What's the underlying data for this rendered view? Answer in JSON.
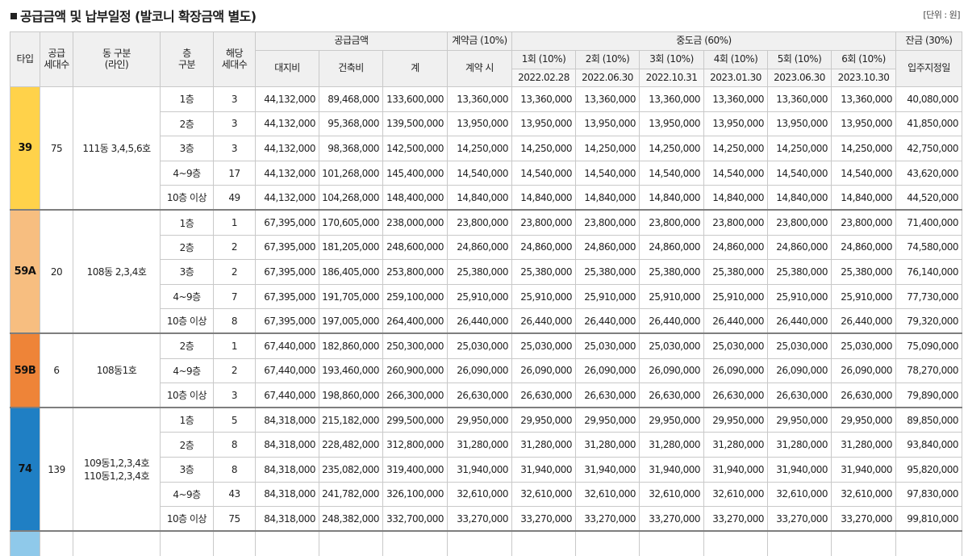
{
  "title": "공급금액 및 납부일정 (발코니 확장금액 별도)",
  "unit": "[단위 : 원]",
  "header": {
    "type": "타입",
    "supply_households": "공급\n세대수",
    "dong": "동 구분\n(라인)",
    "floor": "층\n구분",
    "households": "해당\n세대수",
    "supply_amount": "공급금액",
    "land": "대지비",
    "building": "건축비",
    "total": "계",
    "deposit": "계약금 (10%)",
    "deposit_time": "계약 시",
    "middle": "중도금 (60%)",
    "balance": "잔금 (30%)",
    "balance_date": "입주지정일",
    "installments": [
      {
        "label": "1회 (10%)",
        "date": "2022.02.28"
      },
      {
        "label": "2회 (10%)",
        "date": "2022.06.30"
      },
      {
        "label": "3회 (10%)",
        "date": "2022.10.31"
      },
      {
        "label": "4회 (10%)",
        "date": "2023.01.30"
      },
      {
        "label": "5회 (10%)",
        "date": "2023.06.30"
      },
      {
        "label": "6회 (10%)",
        "date": "2023.10.30"
      }
    ]
  },
  "groups": [
    {
      "type": "39",
      "color": "#ffd24a",
      "supply": "75",
      "dong": "111동 3,4,5,6호",
      "rows": [
        {
          "floor": "1층",
          "count": "3",
          "land": "44,132,000",
          "building": "89,468,000",
          "total": "133,600,000",
          "deposit": "13,360,000",
          "middle": "13,360,000",
          "balance": "40,080,000"
        },
        {
          "floor": "2층",
          "count": "3",
          "land": "44,132,000",
          "building": "95,368,000",
          "total": "139,500,000",
          "deposit": "13,950,000",
          "middle": "13,950,000",
          "balance": "41,850,000"
        },
        {
          "floor": "3층",
          "count": "3",
          "land": "44,132,000",
          "building": "98,368,000",
          "total": "142,500,000",
          "deposit": "14,250,000",
          "middle": "14,250,000",
          "balance": "42,750,000"
        },
        {
          "floor": "4~9층",
          "count": "17",
          "land": "44,132,000",
          "building": "101,268,000",
          "total": "145,400,000",
          "deposit": "14,540,000",
          "middle": "14,540,000",
          "balance": "43,620,000"
        },
        {
          "floor": "10층 이상",
          "count": "49",
          "land": "44,132,000",
          "building": "104,268,000",
          "total": "148,400,000",
          "deposit": "14,840,000",
          "middle": "14,840,000",
          "balance": "44,520,000"
        }
      ]
    },
    {
      "type": "59A",
      "color": "#f7be80",
      "supply": "20",
      "dong": "108동 2,3,4호",
      "rows": [
        {
          "floor": "1층",
          "count": "1",
          "land": "67,395,000",
          "building": "170,605,000",
          "total": "238,000,000",
          "deposit": "23,800,000",
          "middle": "23,800,000",
          "balance": "71,400,000"
        },
        {
          "floor": "2층",
          "count": "2",
          "land": "67,395,000",
          "building": "181,205,000",
          "total": "248,600,000",
          "deposit": "24,860,000",
          "middle": "24,860,000",
          "balance": "74,580,000"
        },
        {
          "floor": "3층",
          "count": "2",
          "land": "67,395,000",
          "building": "186,405,000",
          "total": "253,800,000",
          "deposit": "25,380,000",
          "middle": "25,380,000",
          "balance": "76,140,000"
        },
        {
          "floor": "4~9층",
          "count": "7",
          "land": "67,395,000",
          "building": "191,705,000",
          "total": "259,100,000",
          "deposit": "25,910,000",
          "middle": "25,910,000",
          "balance": "77,730,000"
        },
        {
          "floor": "10층 이상",
          "count": "8",
          "land": "67,395,000",
          "building": "197,005,000",
          "total": "264,400,000",
          "deposit": "26,440,000",
          "middle": "26,440,000",
          "balance": "79,320,000"
        }
      ]
    },
    {
      "type": "59B",
      "color": "#ee8438",
      "supply": "6",
      "dong": "108동1호",
      "rows": [
        {
          "floor": "2층",
          "count": "1",
          "land": "67,440,000",
          "building": "182,860,000",
          "total": "250,300,000",
          "deposit": "25,030,000",
          "middle": "25,030,000",
          "balance": "75,090,000"
        },
        {
          "floor": "4~9층",
          "count": "2",
          "land": "67,440,000",
          "building": "193,460,000",
          "total": "260,900,000",
          "deposit": "26,090,000",
          "middle": "26,090,000",
          "balance": "78,270,000"
        },
        {
          "floor": "10층 이상",
          "count": "3",
          "land": "67,440,000",
          "building": "198,860,000",
          "total": "266,300,000",
          "deposit": "26,630,000",
          "middle": "26,630,000",
          "balance": "79,890,000"
        }
      ]
    },
    {
      "type": "74",
      "color": "#1f7fc4",
      "supply": "139",
      "dong": "109동1,2,3,4호\n110동1,2,3,4호",
      "rows": [
        {
          "floor": "1층",
          "count": "5",
          "land": "84,318,000",
          "building": "215,182,000",
          "total": "299,500,000",
          "deposit": "29,950,000",
          "middle": "29,950,000",
          "balance": "89,850,000"
        },
        {
          "floor": "2층",
          "count": "8",
          "land": "84,318,000",
          "building": "228,482,000",
          "total": "312,800,000",
          "deposit": "31,280,000",
          "middle": "31,280,000",
          "balance": "93,840,000"
        },
        {
          "floor": "3층",
          "count": "8",
          "land": "84,318,000",
          "building": "235,082,000",
          "total": "319,400,000",
          "deposit": "31,940,000",
          "middle": "31,940,000",
          "balance": "95,820,000"
        },
        {
          "floor": "4~9층",
          "count": "43",
          "land": "84,318,000",
          "building": "241,782,000",
          "total": "326,100,000",
          "deposit": "32,610,000",
          "middle": "32,610,000",
          "balance": "97,830,000"
        },
        {
          "floor": "10층 이상",
          "count": "75",
          "land": "84,318,000",
          "building": "248,382,000",
          "total": "332,700,000",
          "deposit": "33,270,000",
          "middle": "33,270,000",
          "balance": "99,810,000"
        }
      ]
    }
  ],
  "next_group_color": "#8fc9ea"
}
